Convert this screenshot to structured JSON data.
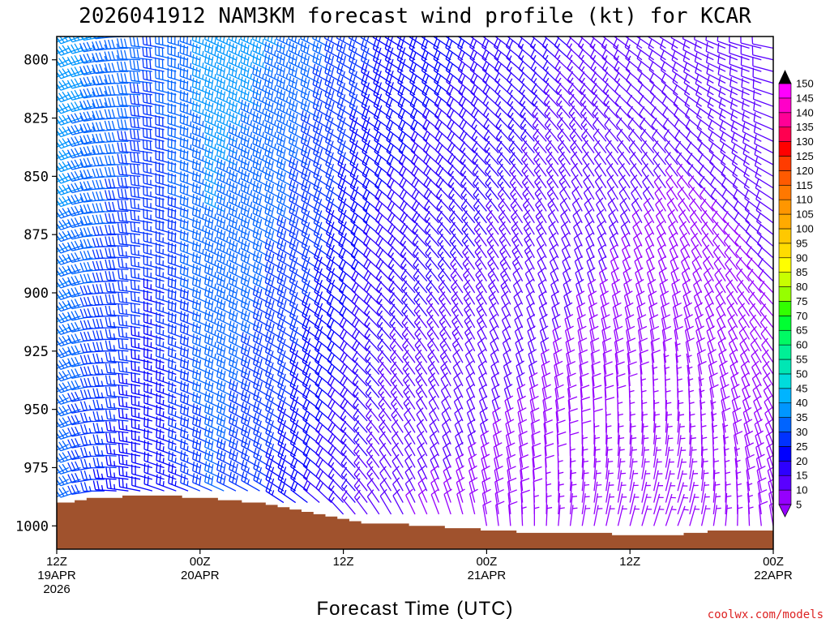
{
  "chart_data": {
    "type": "wind-barb time-height profile",
    "title": "2026041912 NAM3KM forecast wind profile (kt) for KCAR",
    "xlabel": "Forecast Time (UTC)",
    "ylabel": "",
    "credit": "coolwx.com/models",
    "x_unit": "hours from 2026-04-19 12Z",
    "xlim": [
      0,
      60
    ],
    "ylim": [
      1010,
      790
    ],
    "y_ticks": [
      800,
      825,
      850,
      875,
      900,
      925,
      950,
      975,
      1000
    ],
    "x_ticks": [
      {
        "hour": 0,
        "lines": [
          "12Z",
          "19APR",
          "2026"
        ]
      },
      {
        "hour": 12,
        "lines": [
          "00Z",
          "20APR"
        ]
      },
      {
        "hour": 24,
        "lines": [
          "12Z"
        ]
      },
      {
        "hour": 36,
        "lines": [
          "00Z",
          "21APR"
        ]
      },
      {
        "hour": 48,
        "lines": [
          "12Z"
        ]
      },
      {
        "hour": 60,
        "lines": [
          "00Z",
          "22APR"
        ]
      }
    ],
    "colorbar": {
      "unit": "kt",
      "levels": [
        5,
        10,
        15,
        20,
        25,
        30,
        35,
        40,
        45,
        50,
        55,
        60,
        65,
        70,
        75,
        80,
        85,
        90,
        95,
        100,
        105,
        110,
        115,
        120,
        125,
        130,
        135,
        140,
        145,
        150
      ],
      "colors": [
        "#9600fe",
        "#5a00ff",
        "#2d00ff",
        "#0000ff",
        "#0032ff",
        "#0064ff",
        "#0096ff",
        "#00b4ff",
        "#00dcdc",
        "#00e6b4",
        "#00f096",
        "#00fa64",
        "#00ff32",
        "#32ff00",
        "#96ff00",
        "#c8ff00",
        "#ffff00",
        "#ffdc00",
        "#ffc800",
        "#ffaa00",
        "#ff9600",
        "#ff7800",
        "#ff5a00",
        "#ff3c00",
        "#ff0000",
        "#ff0050",
        "#ff0096",
        "#ff00c8",
        "#ff00ff",
        "#ff40ff"
      ]
    },
    "surface_pressure": [
      990,
      990,
      989,
      988,
      988,
      988,
      987,
      987,
      987,
      987,
      987,
      988,
      988,
      988,
      989,
      989,
      990,
      990,
      991,
      992,
      993,
      994,
      995,
      996,
      997,
      998,
      999,
      999,
      999,
      999,
      1000,
      1000,
      1000,
      1001,
      1001,
      1001,
      1002,
      1002,
      1002,
      1003,
      1003,
      1003,
      1003,
      1003,
      1003,
      1003,
      1003,
      1004,
      1004,
      1004,
      1004,
      1004,
      1004,
      1003,
      1003,
      1002,
      1002,
      1002,
      1002,
      1002,
      1002
    ],
    "barb_levels": [
      790,
      795,
      800,
      805,
      810,
      815,
      820,
      825,
      830,
      835,
      840,
      845,
      850,
      855,
      860,
      865,
      870,
      875,
      880,
      885,
      890,
      895,
      900,
      905,
      910,
      915,
      920,
      925,
      930,
      935,
      940,
      945,
      950,
      955,
      960,
      965,
      970,
      975,
      980,
      985,
      990,
      995,
      1000,
      1005
    ],
    "barb_hours": [
      0,
      1,
      2,
      3,
      4,
      5,
      6,
      7,
      8,
      9,
      10,
      11,
      12,
      13,
      14,
      15,
      16,
      17,
      18,
      19,
      20,
      21,
      22,
      23,
      24,
      25,
      26,
      27,
      28,
      29,
      30,
      31,
      32,
      33,
      34,
      35,
      36,
      37,
      38,
      39,
      40,
      41,
      42,
      43,
      44,
      45,
      46,
      47,
      48,
      49,
      50,
      51,
      52,
      53,
      54,
      55,
      56,
      57,
      58,
      59,
      60
    ],
    "wind_keyframes": [
      {
        "hour": 0,
        "upper": {
          "spd": 40,
          "dir": 240
        },
        "lower": {
          "spd": 35,
          "dir": 235
        }
      },
      {
        "hour": 4,
        "upper": {
          "spd": 35,
          "dir": 260
        },
        "lower": {
          "spd": 25,
          "dir": 270
        }
      },
      {
        "hour": 9,
        "upper": {
          "spd": 30,
          "dir": 280
        },
        "lower": {
          "spd": 20,
          "dir": 290
        }
      },
      {
        "hour": 14,
        "upper": {
          "spd": 38,
          "dir": 295
        },
        "lower": {
          "spd": 30,
          "dir": 295
        }
      },
      {
        "hour": 20,
        "upper": {
          "spd": 35,
          "dir": 295
        },
        "lower": {
          "spd": 22,
          "dir": 305
        }
      },
      {
        "hour": 28,
        "upper": {
          "spd": 25,
          "dir": 300
        },
        "lower": {
          "spd": 10,
          "dir": 330
        }
      },
      {
        "hour": 36,
        "upper": {
          "spd": 20,
          "dir": 305
        },
        "lower": {
          "spd": 8,
          "dir": 350
        }
      },
      {
        "hour": 44,
        "upper": {
          "spd": 15,
          "dir": 310
        },
        "lower": {
          "spd": 6,
          "dir": 10
        }
      },
      {
        "hour": 52,
        "upper": {
          "spd": 12,
          "dir": 300
        },
        "lower": {
          "spd": 5,
          "dir": 20
        }
      },
      {
        "hour": 60,
        "upper": {
          "spd": 12,
          "dir": 280
        },
        "lower": {
          "spd": 8,
          "dir": 350
        }
      }
    ],
    "terrain_color": "#a0522d",
    "frame_color": "#000000"
  }
}
